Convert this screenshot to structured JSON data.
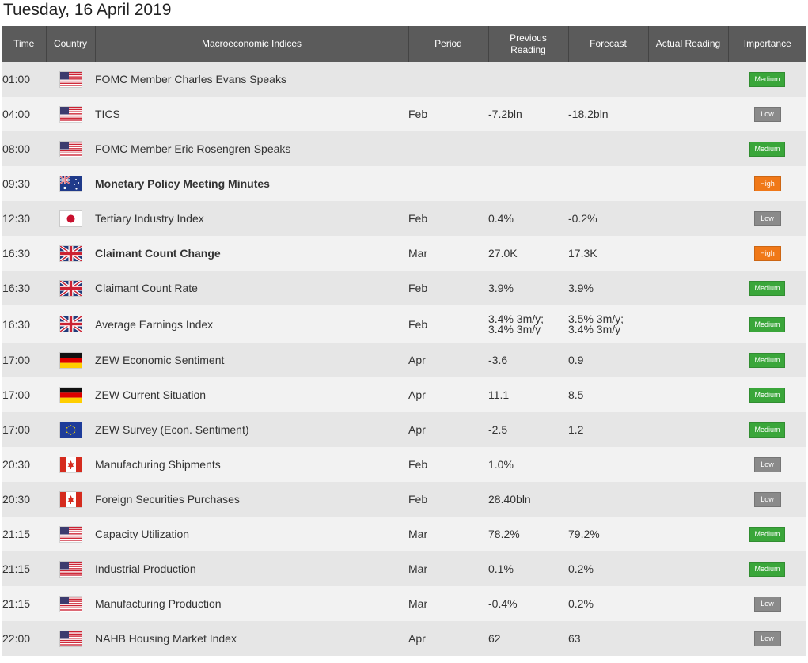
{
  "page": {
    "date_heading": "Tuesday, 16 April 2019"
  },
  "columns": {
    "time": "Time",
    "country": "Country",
    "indices": "Macroeconomic Indices",
    "period": "Period",
    "previous": "Previous Reading",
    "forecast": "Forecast",
    "actual": "Actual Reading",
    "importance": "Importance"
  },
  "colors": {
    "header_bg": "#5b5b5b",
    "row_light": "#f2f2f2",
    "row_dark": "#e6e6e6",
    "medium": "#3aa63a",
    "low": "#8a8a8a",
    "high": "#f07818"
  },
  "events": [
    {
      "time": "01:00",
      "country_flag": "us-flag-icon",
      "name": "FOMC Member Charles Evans Speaks",
      "bold": false,
      "period": "",
      "previous": "",
      "forecast": "",
      "actual": "",
      "importance": "Medium",
      "level": "medium"
    },
    {
      "time": "04:00",
      "country_flag": "us-flag-icon",
      "name": "TICS",
      "bold": false,
      "period": "Feb",
      "previous": "-7.2bln",
      "forecast": "-18.2bln",
      "actual": "",
      "importance": "Low",
      "level": "low"
    },
    {
      "time": "08:00",
      "country_flag": "us-flag-icon",
      "name": "FOMC Member Eric Rosengren Speaks",
      "bold": false,
      "period": "",
      "previous": "",
      "forecast": "",
      "actual": "",
      "importance": "Medium",
      "level": "medium"
    },
    {
      "time": "09:30",
      "country_flag": "au-flag-icon",
      "name": "Monetary Policy Meeting Minutes",
      "bold": true,
      "period": "",
      "previous": "",
      "forecast": "",
      "actual": "",
      "importance": "High",
      "level": "high"
    },
    {
      "time": "12:30",
      "country_flag": "jp-flag-icon",
      "name": "Tertiary Industry Index",
      "bold": false,
      "period": "Feb",
      "previous": "0.4%",
      "forecast": "-0.2%",
      "actual": "",
      "importance": "Low",
      "level": "low"
    },
    {
      "time": "16:30",
      "country_flag": "uk-flag-icon",
      "name": "Claimant Count Change",
      "bold": true,
      "period": "Mar",
      "previous": "27.0K",
      "forecast": "17.3K",
      "actual": "",
      "importance": "High",
      "level": "high"
    },
    {
      "time": "16:30",
      "country_flag": "uk-flag-icon",
      "name": "Claimant Count Rate",
      "bold": false,
      "period": "Feb",
      "previous": "3.9%",
      "forecast": "3.9%",
      "actual": "",
      "importance": "Medium",
      "level": "medium"
    },
    {
      "time": "16:30",
      "country_flag": "uk-flag-icon",
      "name": "Average Earnings Index",
      "bold": false,
      "period": "Feb",
      "previous": "3.4% 3m/y;",
      "previous_2": "3.4% 3m/y",
      "forecast": "3.5% 3m/y;",
      "forecast_2": "3.4% 3m/y",
      "actual": "",
      "importance": "Medium",
      "level": "medium"
    },
    {
      "time": "17:00",
      "country_flag": "de-flag-icon",
      "name": "ZEW Economic Sentiment",
      "bold": false,
      "period": "Apr",
      "previous": "-3.6",
      "forecast": "0.9",
      "actual": "",
      "importance": "Medium",
      "level": "medium"
    },
    {
      "time": "17:00",
      "country_flag": "de-flag-icon",
      "name": "ZEW Current Situation",
      "bold": false,
      "period": "Apr",
      "previous": "11.1",
      "forecast": "8.5",
      "actual": "",
      "importance": "Medium",
      "level": "medium"
    },
    {
      "time": "17:00",
      "country_flag": "eu-flag-icon",
      "name": "ZEW Survey (Econ. Sentiment)",
      "bold": false,
      "period": "Apr",
      "previous": "-2.5",
      "forecast": "1.2",
      "actual": "",
      "importance": "Medium",
      "level": "medium"
    },
    {
      "time": "20:30",
      "country_flag": "ca-flag-icon",
      "name": "Manufacturing Shipments",
      "bold": false,
      "period": "Feb",
      "previous": "1.0%",
      "forecast": "",
      "actual": "",
      "importance": "Low",
      "level": "low"
    },
    {
      "time": "20:30",
      "country_flag": "ca-flag-icon",
      "name": "Foreign Securities Purchases",
      "bold": false,
      "period": "Feb",
      "previous": "28.40bln",
      "forecast": "",
      "actual": "",
      "importance": "Low",
      "level": "low"
    },
    {
      "time": "21:15",
      "country_flag": "us-flag-icon",
      "name": "Capacity Utilization",
      "bold": false,
      "period": "Mar",
      "previous": "78.2%",
      "forecast": "79.2%",
      "actual": "",
      "importance": "Medium",
      "level": "medium"
    },
    {
      "time": "21:15",
      "country_flag": "us-flag-icon",
      "name": "Industrial Production",
      "bold": false,
      "period": "Mar",
      "previous": "0.1%",
      "forecast": "0.2%",
      "actual": "",
      "importance": "Medium",
      "level": "medium"
    },
    {
      "time": "21:15",
      "country_flag": "us-flag-icon",
      "name": "Manufacturing Production",
      "bold": false,
      "period": "Mar",
      "previous": "-0.4%",
      "forecast": "0.2%",
      "actual": "",
      "importance": "Low",
      "level": "low"
    },
    {
      "time": "22:00",
      "country_flag": "us-flag-icon",
      "name": "NAHB Housing Market Index",
      "bold": false,
      "period": "Apr",
      "previous": "62",
      "forecast": "63",
      "actual": "",
      "importance": "Low",
      "level": "low"
    }
  ]
}
